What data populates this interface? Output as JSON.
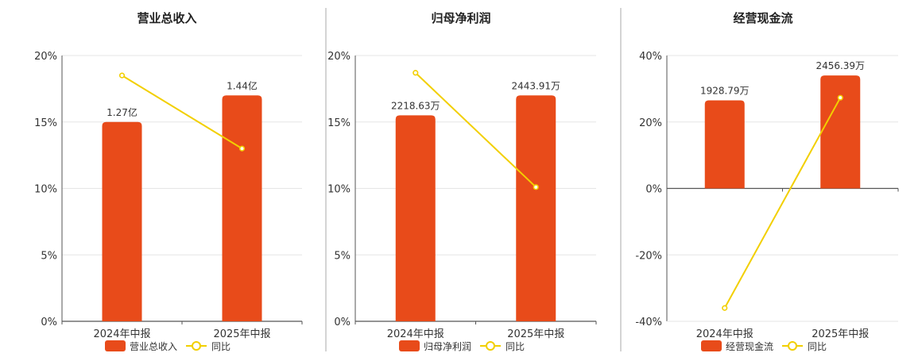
{
  "colors": {
    "bar": "#e84b1a",
    "line": "#f2cf00",
    "grid": "#e6e6e6",
    "axis": "#555555",
    "divider": "#aaaaaa"
  },
  "chart_data": [
    {
      "type": "bar",
      "title": "营业总收入",
      "categories": [
        "2024年中报",
        "2025年中报"
      ],
      "bar_series": {
        "name": "营业总收入",
        "labels": [
          "1.27亿",
          "1.44亿"
        ],
        "values": [
          1.27,
          1.44
        ],
        "unit": "亿"
      },
      "line_series": {
        "name": "同比",
        "values": [
          18.5,
          13.0
        ]
      },
      "ylim": [
        0,
        20
      ],
      "yticks": [
        0,
        5,
        10,
        15,
        20
      ],
      "tick_labels": [
        "0%",
        "5%",
        "10%",
        "15%",
        "20%"
      ],
      "legend": "bottom"
    },
    {
      "type": "bar",
      "title": "归母净利润",
      "categories": [
        "2024年中报",
        "2025年中报"
      ],
      "bar_series": {
        "name": "归母净利润",
        "labels": [
          "2218.63万",
          "2443.91万"
        ],
        "values": [
          2218.63,
          2443.91
        ],
        "unit": "万"
      },
      "line_series": {
        "name": "同比",
        "values": [
          18.7,
          10.1
        ]
      },
      "ylim": [
        0,
        20
      ],
      "yticks": [
        0,
        5,
        10,
        15,
        20
      ],
      "tick_labels": [
        "0%",
        "5%",
        "10%",
        "15%",
        "20%"
      ],
      "legend": "bottom"
    },
    {
      "type": "bar",
      "title": "经营现金流",
      "categories": [
        "2024年中报",
        "2025年中报"
      ],
      "bar_series": {
        "name": "经营现金流",
        "labels": [
          "1928.79万",
          "2456.39万"
        ],
        "values": [
          1928.79,
          2456.39
        ],
        "unit": "万"
      },
      "line_series": {
        "name": "同比",
        "values": [
          -36.0,
          27.3
        ]
      },
      "ylim": [
        -40,
        40
      ],
      "yticks": [
        -40,
        -20,
        0,
        20,
        40
      ],
      "tick_labels": [
        "-40%",
        "-20%",
        "0%",
        "20%",
        "40%"
      ],
      "legend": "bottom"
    }
  ]
}
